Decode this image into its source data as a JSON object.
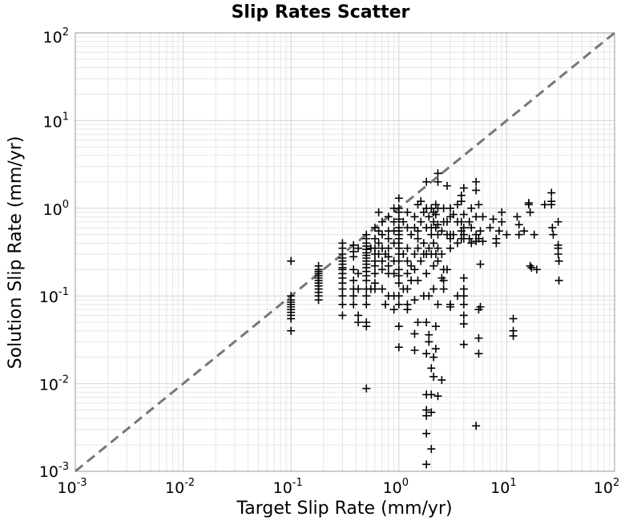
{
  "chart_data": {
    "type": "scatter",
    "title": "Slip Rates Scatter",
    "xlabel": "Target Slip Rate (mm/yr)",
    "ylabel": "Solution Slip Rate (mm/yr)",
    "x_scale": "log",
    "y_scale": "log",
    "xlim": [
      0.001,
      100
    ],
    "ylim": [
      0.001,
      100
    ],
    "grid": true,
    "marker": "plus",
    "colors": {
      "marker": "#000000",
      "reference_line": "#777777",
      "grid": "#e6e6e6",
      "frame": "#999999"
    },
    "reference_line": {
      "style": "dashed",
      "x": [
        0.001,
        100
      ],
      "y": [
        0.001,
        100
      ]
    },
    "x_ticks": [
      {
        "base": "10",
        "exp": "-3",
        "value": 0.001
      },
      {
        "base": "10",
        "exp": "-2",
        "value": 0.01
      },
      {
        "base": "10",
        "exp": "-1",
        "value": 0.1
      },
      {
        "base": "10",
        "exp": "0",
        "value": 1
      },
      {
        "base": "10",
        "exp": "1",
        "value": 10
      },
      {
        "base": "10",
        "exp": "2",
        "value": 100
      }
    ],
    "y_ticks": [
      {
        "base": "10",
        "exp": "-3",
        "value": 0.001
      },
      {
        "base": "10",
        "exp": "-2",
        "value": 0.01
      },
      {
        "base": "10",
        "exp": "-1",
        "value": 0.1
      },
      {
        "base": "10",
        "exp": "0",
        "value": 1
      },
      {
        "base": "10",
        "exp": "1",
        "value": 10
      },
      {
        "base": "10",
        "exp": "2",
        "value": 100
      }
    ],
    "points": [
      [
        0.1,
        0.25
      ],
      [
        0.1,
        0.1
      ],
      [
        0.1,
        0.09
      ],
      [
        0.1,
        0.085
      ],
      [
        0.1,
        0.08
      ],
      [
        0.1,
        0.075
      ],
      [
        0.1,
        0.07
      ],
      [
        0.1,
        0.065
      ],
      [
        0.1,
        0.06
      ],
      [
        0.1,
        0.055
      ],
      [
        0.1,
        0.04
      ],
      [
        0.18,
        0.22
      ],
      [
        0.18,
        0.2
      ],
      [
        0.18,
        0.19
      ],
      [
        0.18,
        0.18
      ],
      [
        0.18,
        0.17
      ],
      [
        0.18,
        0.16
      ],
      [
        0.18,
        0.15
      ],
      [
        0.18,
        0.14
      ],
      [
        0.18,
        0.13
      ],
      [
        0.18,
        0.12
      ],
      [
        0.18,
        0.11
      ],
      [
        0.18,
        0.1
      ],
      [
        0.18,
        0.09
      ],
      [
        0.3,
        0.4
      ],
      [
        0.3,
        0.35
      ],
      [
        0.3,
        0.3
      ],
      [
        0.3,
        0.27
      ],
      [
        0.3,
        0.25
      ],
      [
        0.3,
        0.23
      ],
      [
        0.3,
        0.21
      ],
      [
        0.3,
        0.2
      ],
      [
        0.3,
        0.18
      ],
      [
        0.3,
        0.16
      ],
      [
        0.3,
        0.14
      ],
      [
        0.3,
        0.12
      ],
      [
        0.3,
        0.1
      ],
      [
        0.3,
        0.08
      ],
      [
        0.3,
        0.06
      ],
      [
        0.38,
        0.38
      ],
      [
        0.38,
        0.32
      ],
      [
        0.38,
        0.28
      ],
      [
        0.38,
        0.2
      ],
      [
        0.38,
        0.15
      ],
      [
        0.38,
        0.12
      ],
      [
        0.38,
        0.1
      ],
      [
        0.38,
        0.08
      ],
      [
        0.42,
        0.35
      ],
      [
        0.42,
        0.18
      ],
      [
        0.42,
        0.12
      ],
      [
        0.42,
        0.06
      ],
      [
        0.42,
        0.05
      ],
      [
        0.5,
        0.5
      ],
      [
        0.5,
        0.45
      ],
      [
        0.5,
        0.4
      ],
      [
        0.5,
        0.37
      ],
      [
        0.5,
        0.34
      ],
      [
        0.5,
        0.31
      ],
      [
        0.5,
        0.29
      ],
      [
        0.5,
        0.27
      ],
      [
        0.5,
        0.25
      ],
      [
        0.5,
        0.23
      ],
      [
        0.5,
        0.21
      ],
      [
        0.5,
        0.19
      ],
      [
        0.5,
        0.17
      ],
      [
        0.5,
        0.15
      ],
      [
        0.5,
        0.12
      ],
      [
        0.5,
        0.1
      ],
      [
        0.5,
        0.08
      ],
      [
        0.5,
        0.05
      ],
      [
        0.5,
        0.045
      ],
      [
        0.5,
        0.0088
      ],
      [
        0.55,
        0.35
      ],
      [
        0.55,
        0.12
      ],
      [
        0.6,
        0.6
      ],
      [
        0.6,
        0.45
      ],
      [
        0.6,
        0.35
      ],
      [
        0.6,
        0.3
      ],
      [
        0.6,
        0.25
      ],
      [
        0.6,
        0.22
      ],
      [
        0.6,
        0.18
      ],
      [
        0.6,
        0.14
      ],
      [
        0.6,
        0.12
      ],
      [
        0.65,
        0.9
      ],
      [
        0.65,
        0.55
      ],
      [
        0.65,
        0.4
      ],
      [
        0.65,
        0.3
      ],
      [
        0.7,
        0.7
      ],
      [
        0.7,
        0.5
      ],
      [
        0.7,
        0.35
      ],
      [
        0.7,
        0.25
      ],
      [
        0.7,
        0.2
      ],
      [
        0.7,
        0.12
      ],
      [
        0.75,
        0.08
      ],
      [
        0.75,
        0.3
      ],
      [
        0.8,
        0.8
      ],
      [
        0.8,
        0.55
      ],
      [
        0.8,
        0.45
      ],
      [
        0.8,
        0.35
      ],
      [
        0.8,
        0.28
      ],
      [
        0.8,
        0.22
      ],
      [
        0.8,
        0.18
      ],
      [
        0.8,
        0.1
      ],
      [
        0.9,
        1.0
      ],
      [
        0.9,
        0.7
      ],
      [
        0.9,
        0.55
      ],
      [
        0.9,
        0.4
      ],
      [
        0.9,
        0.25
      ],
      [
        0.9,
        0.18
      ],
      [
        0.9,
        0.1
      ],
      [
        0.9,
        0.07
      ],
      [
        1.0,
        1.3
      ],
      [
        1.0,
        1.0
      ],
      [
        1.0,
        0.9
      ],
      [
        1.0,
        0.75
      ],
      [
        1.0,
        0.6
      ],
      [
        1.0,
        0.55
      ],
      [
        1.0,
        0.5
      ],
      [
        1.0,
        0.45
      ],
      [
        1.0,
        0.4
      ],
      [
        1.0,
        0.35
      ],
      [
        1.0,
        0.3
      ],
      [
        1.0,
        0.25
      ],
      [
        1.0,
        0.2
      ],
      [
        1.0,
        0.17
      ],
      [
        1.0,
        0.14
      ],
      [
        1.0,
        0.1
      ],
      [
        1.0,
        0.08
      ],
      [
        1.0,
        0.045
      ],
      [
        1.0,
        0.026
      ],
      [
        1.1,
        0.7
      ],
      [
        1.1,
        0.3
      ],
      [
        1.1,
        0.12
      ],
      [
        1.2,
        0.9
      ],
      [
        1.2,
        0.6
      ],
      [
        1.2,
        0.35
      ],
      [
        1.2,
        0.25
      ],
      [
        1.2,
        0.18
      ],
      [
        1.2,
        0.12
      ],
      [
        1.2,
        0.08
      ],
      [
        1.2,
        0.07
      ],
      [
        1.3,
        0.5
      ],
      [
        1.3,
        0.22
      ],
      [
        1.3,
        0.15
      ],
      [
        1.4,
        0.8
      ],
      [
        1.4,
        0.6
      ],
      [
        1.4,
        0.3
      ],
      [
        1.4,
        0.2
      ],
      [
        1.4,
        0.09
      ],
      [
        1.4,
        0.037
      ],
      [
        1.4,
        0.024
      ],
      [
        1.5,
        1.1
      ],
      [
        1.5,
        0.55
      ],
      [
        1.5,
        0.45
      ],
      [
        1.5,
        0.35
      ],
      [
        1.5,
        0.15
      ],
      [
        1.5,
        0.05
      ],
      [
        1.6,
        1.2
      ],
      [
        1.6,
        0.7
      ],
      [
        1.6,
        0.25
      ],
      [
        1.7,
        0.9
      ],
      [
        1.7,
        0.4
      ],
      [
        1.7,
        0.3
      ],
      [
        1.7,
        0.1
      ],
      [
        1.8,
        2.0
      ],
      [
        1.8,
        1.0
      ],
      [
        1.8,
        0.6
      ],
      [
        1.8,
        0.3
      ],
      [
        1.8,
        0.18
      ],
      [
        1.8,
        0.05
      ],
      [
        1.8,
        0.022
      ],
      [
        1.8,
        0.0075
      ],
      [
        1.8,
        0.005
      ],
      [
        1.8,
        0.0043
      ],
      [
        1.8,
        0.0027
      ],
      [
        1.8,
        0.0012
      ],
      [
        1.9,
        0.8
      ],
      [
        1.9,
        0.35
      ],
      [
        1.9,
        0.1
      ],
      [
        1.9,
        0.036
      ],
      [
        1.9,
        0.03
      ],
      [
        2.0,
        1.0
      ],
      [
        2.0,
        0.6
      ],
      [
        2.0,
        0.5
      ],
      [
        2.0,
        0.3
      ],
      [
        2.0,
        0.015
      ],
      [
        2.0,
        0.0075
      ],
      [
        2.0,
        0.0047
      ],
      [
        2.0,
        0.0018
      ],
      [
        2.1,
        0.9
      ],
      [
        2.1,
        0.7
      ],
      [
        2.1,
        0.4
      ],
      [
        2.1,
        0.22
      ],
      [
        2.1,
        0.12
      ],
      [
        2.1,
        0.02
      ],
      [
        2.1,
        0.012
      ],
      [
        2.2,
        1.1
      ],
      [
        2.2,
        0.85
      ],
      [
        2.2,
        0.6
      ],
      [
        2.2,
        0.3
      ],
      [
        2.2,
        0.045
      ],
      [
        2.2,
        0.025
      ],
      [
        2.3,
        2.5
      ],
      [
        2.3,
        2.0
      ],
      [
        2.3,
        1.0
      ],
      [
        2.3,
        0.65
      ],
      [
        2.3,
        0.5
      ],
      [
        2.3,
        0.35
      ],
      [
        2.3,
        0.25
      ],
      [
        2.3,
        0.08
      ],
      [
        2.3,
        0.0072
      ],
      [
        2.5,
        0.55
      ],
      [
        2.5,
        0.3
      ],
      [
        2.5,
        0.16
      ],
      [
        2.5,
        0.011
      ],
      [
        2.6,
        1.0
      ],
      [
        2.6,
        0.7
      ],
      [
        2.6,
        0.2
      ],
      [
        2.6,
        0.15
      ],
      [
        2.6,
        0.12
      ],
      [
        2.8,
        1.8
      ],
      [
        2.8,
        0.7
      ],
      [
        2.8,
        0.5
      ],
      [
        2.8,
        0.2
      ],
      [
        3.0,
        1.0
      ],
      [
        3.0,
        0.8
      ],
      [
        3.0,
        0.5
      ],
      [
        3.0,
        0.45
      ],
      [
        3.0,
        0.35
      ],
      [
        3.0,
        0.08
      ],
      [
        3.0,
        0.075
      ],
      [
        3.2,
        0.85
      ],
      [
        3.2,
        0.5
      ],
      [
        3.5,
        1.1
      ],
      [
        3.5,
        0.7
      ],
      [
        3.5,
        0.4
      ],
      [
        3.5,
        0.1
      ],
      [
        3.8,
        1.4
      ],
      [
        3.8,
        1.2
      ],
      [
        3.8,
        0.7
      ],
      [
        3.8,
        0.55
      ],
      [
        3.8,
        0.45
      ],
      [
        4.0,
        1.7
      ],
      [
        4.0,
        0.85
      ],
      [
        4.0,
        0.6
      ],
      [
        4.0,
        0.5
      ],
      [
        4.0,
        0.45
      ],
      [
        4.0,
        0.16
      ],
      [
        4.0,
        0.12
      ],
      [
        4.0,
        0.1
      ],
      [
        4.0,
        0.08
      ],
      [
        4.0,
        0.06
      ],
      [
        4.0,
        0.048
      ],
      [
        4.0,
        0.028
      ],
      [
        4.5,
        0.7
      ],
      [
        4.5,
        0.45
      ],
      [
        4.7,
        1.0
      ],
      [
        4.7,
        0.6
      ],
      [
        4.7,
        0.4
      ],
      [
        5.2,
        2.0
      ],
      [
        5.2,
        1.6
      ],
      [
        5.2,
        0.8
      ],
      [
        5.2,
        0.5
      ],
      [
        5.2,
        0.42
      ],
      [
        5.2,
        0.0033
      ],
      [
        5.5,
        1.1
      ],
      [
        5.5,
        0.45
      ],
      [
        5.5,
        0.07
      ],
      [
        5.5,
        0.033
      ],
      [
        5.5,
        0.022
      ],
      [
        5.7,
        0.075
      ],
      [
        5.7,
        0.23
      ],
      [
        5.7,
        0.55
      ],
      [
        6.0,
        0.8
      ],
      [
        6.0,
        0.42
      ],
      [
        7.0,
        0.6
      ],
      [
        7.5,
        0.75
      ],
      [
        8.0,
        0.4
      ],
      [
        8.0,
        0.45
      ],
      [
        8.5,
        0.55
      ],
      [
        9.0,
        0.9
      ],
      [
        9.0,
        0.7
      ],
      [
        10.0,
        0.5
      ],
      [
        11.5,
        0.055
      ],
      [
        11.5,
        0.04
      ],
      [
        11.5,
        0.035
      ],
      [
        12.5,
        0.8
      ],
      [
        13.0,
        0.5
      ],
      [
        13.0,
        0.65
      ],
      [
        14.5,
        0.55
      ],
      [
        16.0,
        1.1
      ],
      [
        16.0,
        1.15
      ],
      [
        16.5,
        0.9
      ],
      [
        16.5,
        0.22
      ],
      [
        17.0,
        0.21
      ],
      [
        18.0,
        0.5
      ],
      [
        19.0,
        0.2
      ],
      [
        22.5,
        1.1
      ],
      [
        26.0,
        1.5
      ],
      [
        26.0,
        1.2
      ],
      [
        26.0,
        1.1
      ],
      [
        26.5,
        0.6
      ],
      [
        27.0,
        0.5
      ],
      [
        30.0,
        0.7
      ],
      [
        30.0,
        0.38
      ],
      [
        30.0,
        0.35
      ],
      [
        30.0,
        0.3
      ],
      [
        30.5,
        0.25
      ],
      [
        30.5,
        0.15
      ]
    ]
  }
}
